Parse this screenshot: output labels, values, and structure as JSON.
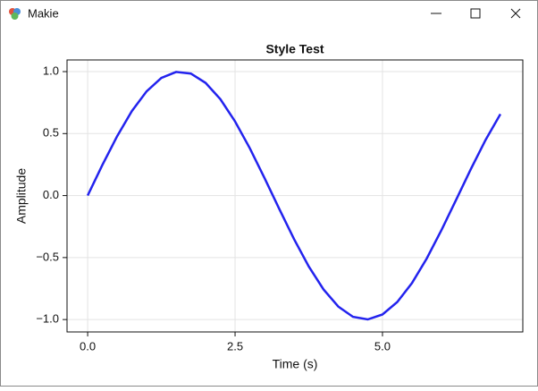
{
  "window": {
    "title": "Makie"
  },
  "chart_data": {
    "type": "line",
    "title": "Style Test",
    "x_label": "Time (s)",
    "y_label": "Amplitude",
    "x": [
      0,
      0.25,
      0.5,
      0.75,
      1,
      1.25,
      1.5,
      1.75,
      2,
      2.25,
      2.5,
      2.75,
      3,
      3.25,
      3.5,
      3.75,
      4,
      4.25,
      4.5,
      4.75,
      5,
      5.25,
      5.5,
      5.75,
      6,
      6.25,
      6.5,
      6.75,
      7
    ],
    "values": [
      0,
      0.247,
      0.479,
      0.682,
      0.841,
      0.949,
      0.997,
      0.984,
      0.909,
      0.778,
      0.598,
      0.382,
      0.141,
      -0.108,
      -0.351,
      -0.572,
      -0.757,
      -0.895,
      -0.978,
      -0.999,
      -0.959,
      -0.859,
      -0.706,
      -0.508,
      -0.279,
      -0.033,
      0.215,
      0.45,
      0.657
    ],
    "color": "#2323ee",
    "xlim": [
      -0.35,
      7.38
    ],
    "ylim": [
      -1.1,
      1.094
    ],
    "xticks": [
      {
        "value": 0,
        "label": "0.0"
      },
      2.5,
      {
        "value": 5,
        "label": "5.0"
      }
    ],
    "yticks": [
      {
        "value": -1,
        "label": "−1.0"
      },
      {
        "value": -0.5,
        "label": "−0.5"
      },
      {
        "value": 0,
        "label": "0.0"
      },
      0.5,
      {
        "value": 1,
        "label": "1.0"
      }
    ],
    "grid": true
  }
}
